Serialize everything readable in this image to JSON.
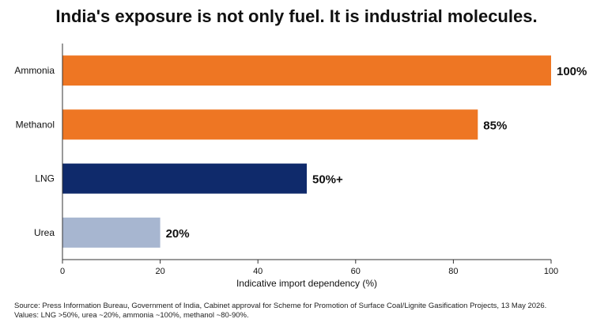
{
  "title": "India's exposure is not only fuel. It is industrial molecules.",
  "source_line1": "Source: Press Information Bureau, Government of India, Cabinet approval for Scheme for Promotion of Surface Coal/Lignite Gasification Projects, 13 May 2026.",
  "source_line2": "Values: LNG >50%, urea ~20%, ammonia ~100%, methanol ~80-90%.",
  "chart_data": {
    "type": "bar",
    "orientation": "horizontal",
    "categories": [
      "Ammonia",
      "Methanol",
      "LNG",
      "Urea"
    ],
    "values": [
      100,
      85,
      50,
      20
    ],
    "data_labels": [
      "100%",
      "85%",
      "50%+",
      "20%"
    ],
    "colors": [
      "#ee7623",
      "#ee7623",
      "#0f2a6b",
      "#a7b6d0"
    ],
    "xlabel": "Indicative import dependency (%)",
    "xlim": [
      0,
      100
    ],
    "xticks": [
      0,
      20,
      40,
      60,
      80,
      100
    ],
    "grid": false
  }
}
